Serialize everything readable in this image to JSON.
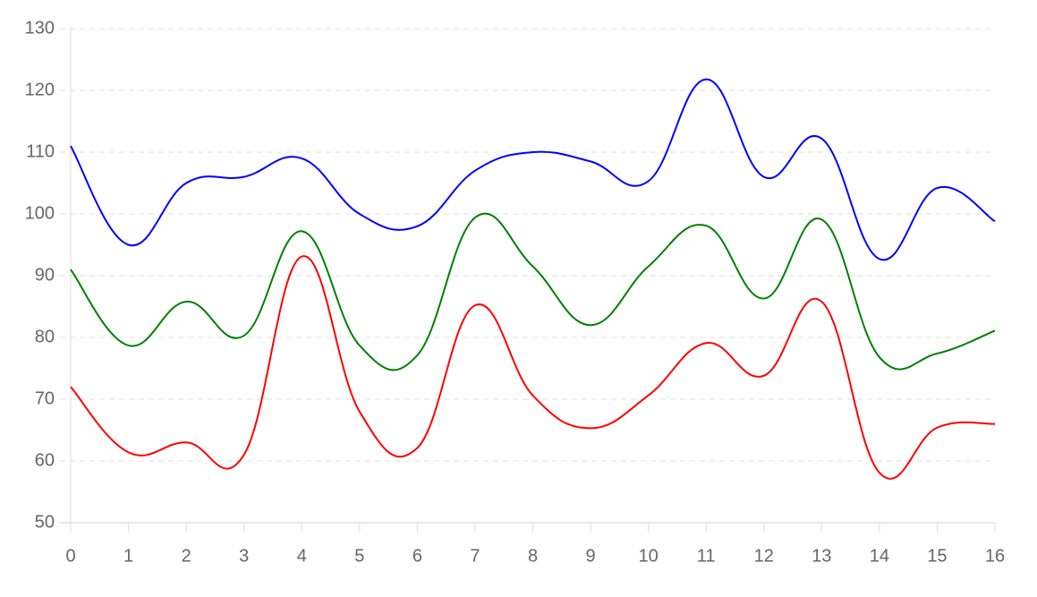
{
  "chart_data": {
    "type": "line",
    "x": [
      0,
      1,
      2,
      3,
      4,
      5,
      6,
      7,
      8,
      9,
      10,
      11,
      12,
      13,
      14,
      15,
      16
    ],
    "series": [
      {
        "color": "#0000ff",
        "values": [
          111,
          95,
          105,
          106,
          109,
          100,
          98,
          107,
          110,
          108.5,
          105.3,
          121.8,
          106,
          112.2,
          92.7,
          104.2,
          98.8
        ]
      },
      {
        "color": "#008000",
        "values": [
          91,
          78.7,
          85.8,
          80.3,
          97.2,
          78.7,
          77.1,
          99.4,
          91.5,
          82,
          91.5,
          98.1,
          86.3,
          99.1,
          76.8,
          77.4,
          81.1
        ]
      },
      {
        "color": "#ff0000",
        "values": [
          72,
          61.4,
          63,
          61,
          93.1,
          68,
          62.1,
          85.2,
          70.6,
          65.3,
          70.6,
          79.1,
          73.8,
          85.8,
          58.1,
          65.4,
          66
        ]
      }
    ],
    "xlim": [
      0,
      16
    ],
    "xticks": [
      0,
      1,
      2,
      3,
      4,
      5,
      6,
      7,
      8,
      9,
      10,
      11,
      12,
      13,
      14,
      15,
      16
    ],
    "ylim": [
      50,
      130
    ],
    "yticks": [
      50,
      60,
      70,
      80,
      90,
      100,
      110,
      120,
      130
    ],
    "grid": true
  }
}
